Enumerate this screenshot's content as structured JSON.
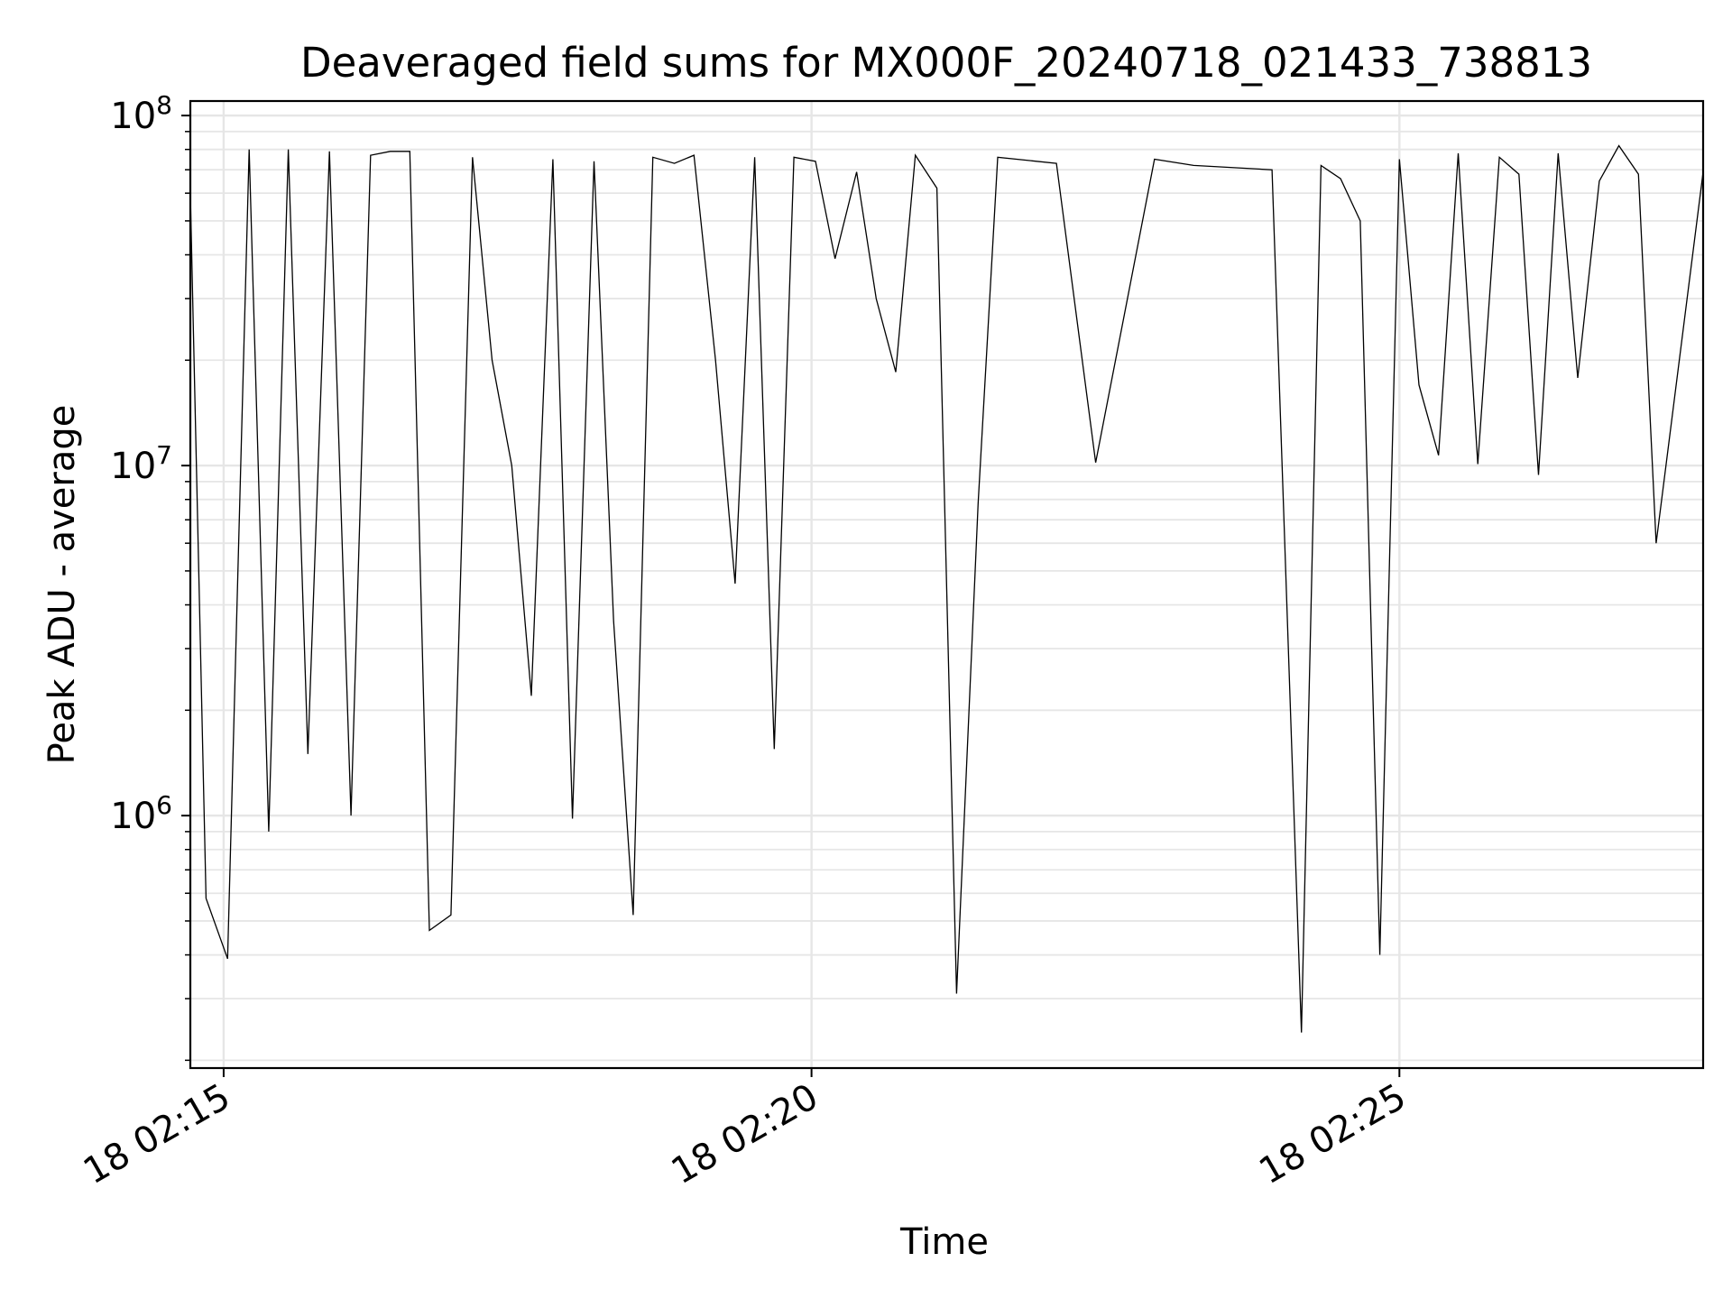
{
  "chart_data": {
    "type": "line",
    "title": "Deaveraged field sums for MX000F_20240718_021433_738813",
    "xlabel": "Time",
    "ylabel": "Peak ADU - average",
    "yscale": "log",
    "ylim": [
      190000,
      110000000
    ],
    "xlim": [
      "2024-07-18T02:14:43",
      "2024-07-18T02:27:35"
    ],
    "grid": true,
    "legend": "none",
    "line_color": "#000000",
    "grid_color": "#e6e6e6",
    "xticks": [
      {
        "t": "2024-07-18T02:15:00",
        "label": "18 02:15"
      },
      {
        "t": "2024-07-18T02:20:00",
        "label": "18 02:20"
      },
      {
        "t": "2024-07-18T02:25:00",
        "label": "18 02:25"
      }
    ],
    "yticks": [
      {
        "value": 1000000,
        "base": "10",
        "exp": "6"
      },
      {
        "value": 10000000,
        "base": "10",
        "exp": "7"
      },
      {
        "value": 100000000,
        "base": "10",
        "exp": "8"
      }
    ],
    "series": [
      {
        "x": [
          "2024-07-18T02:14:43",
          "2024-07-18T02:14:51",
          "2024-07-18T02:15:02",
          "2024-07-18T02:15:13",
          "2024-07-18T02:15:23",
          "2024-07-18T02:15:33",
          "2024-07-18T02:15:43",
          "2024-07-18T02:15:54",
          "2024-07-18T02:16:05",
          "2024-07-18T02:16:15",
          "2024-07-18T02:16:25",
          "2024-07-18T02:16:35",
          "2024-07-18T02:16:45",
          "2024-07-18T02:16:56",
          "2024-07-18T02:17:07",
          "2024-07-18T02:17:17",
          "2024-07-18T02:17:27",
          "2024-07-18T02:17:37",
          "2024-07-18T02:17:48",
          "2024-07-18T02:17:58",
          "2024-07-18T02:18:09",
          "2024-07-18T02:18:19",
          "2024-07-18T02:18:29",
          "2024-07-18T02:18:39",
          "2024-07-18T02:18:50",
          "2024-07-18T02:19:00",
          "2024-07-18T02:19:11",
          "2024-07-18T02:19:21",
          "2024-07-18T02:19:31",
          "2024-07-18T02:19:41",
          "2024-07-18T02:19:51",
          "2024-07-18T02:20:02",
          "2024-07-18T02:20:12",
          "2024-07-18T02:20:23",
          "2024-07-18T02:20:33",
          "2024-07-18T02:20:43",
          "2024-07-18T02:20:53",
          "2024-07-18T02:21:04",
          "2024-07-18T02:21:14",
          "2024-07-18T02:21:25",
          "2024-07-18T02:21:35",
          "2024-07-18T02:22:05",
          "2024-07-18T02:22:25",
          "2024-07-18T02:22:55",
          "2024-07-18T02:23:15",
          "2024-07-18T02:23:55",
          "2024-07-18T02:24:10",
          "2024-07-18T02:24:20",
          "2024-07-18T02:24:30",
          "2024-07-18T02:24:40",
          "2024-07-18T02:24:50",
          "2024-07-18T02:25:00",
          "2024-07-18T02:25:10",
          "2024-07-18T02:25:20",
          "2024-07-18T02:25:30",
          "2024-07-18T02:25:40",
          "2024-07-18T02:25:51",
          "2024-07-18T02:26:01",
          "2024-07-18T02:26:11",
          "2024-07-18T02:26:21",
          "2024-07-18T02:26:31",
          "2024-07-18T02:26:42",
          "2024-07-18T02:26:52",
          "2024-07-18T02:27:02",
          "2024-07-18T02:27:11",
          "2024-07-18T02:27:35"
        ],
        "y": [
          60000000,
          580000,
          390000,
          80000000,
          900000,
          80000000,
          1500000,
          79000000,
          1000000,
          77000000,
          79000000,
          79000000,
          470000,
          520000,
          76000000,
          20000000,
          10000000,
          2200000,
          75000000,
          980000,
          74000000,
          3600000,
          520000,
          76000000,
          73000000,
          77000000,
          20000000,
          4600000,
          76000000,
          1550000,
          76000000,
          74000000,
          39000000,
          69000000,
          30000000,
          18500000,
          77000000,
          62000000,
          310000,
          7800000,
          76000000,
          73000000,
          10200000,
          75000000,
          72000000,
          70000000,
          240000,
          72000000,
          66000000,
          50000000,
          400000,
          75000000,
          17000000,
          10700000,
          78000000,
          10100000,
          76000000,
          68000000,
          9400000,
          78000000,
          17800000,
          65000000,
          82000000,
          68000000,
          6000000,
          69000000
        ]
      }
    ]
  }
}
